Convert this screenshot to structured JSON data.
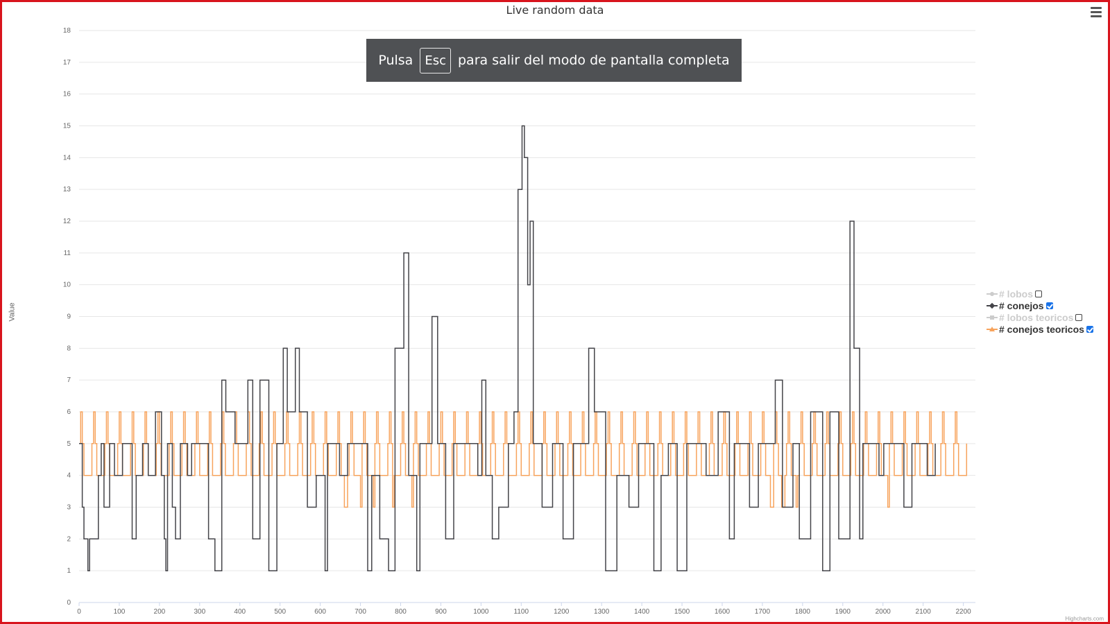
{
  "fullscreen_notice": {
    "prefix": "Pulsa",
    "key": "Esc",
    "suffix": "para salir del modo de pantalla completa"
  },
  "credits": "Highcharts.com",
  "chart_data": {
    "type": "line",
    "step": true,
    "title": "Live random data",
    "xlabel": "",
    "ylabel": "Value",
    "xlim": [
      0,
      2230
    ],
    "ylim": [
      0,
      18
    ],
    "x_ticks": [
      0,
      100,
      200,
      300,
      400,
      500,
      600,
      700,
      800,
      900,
      1000,
      1100,
      1200,
      1300,
      1400,
      1500,
      1600,
      1700,
      1800,
      1900,
      2000,
      2100,
      2200
    ],
    "y_ticks": [
      0,
      1,
      2,
      3,
      4,
      5,
      6,
      7,
      8,
      9,
      10,
      11,
      12,
      13,
      14,
      15,
      16,
      17,
      18
    ],
    "grid": true,
    "legend_position": "right",
    "series": [
      {
        "name": "# lobos",
        "color": "#cccccc",
        "visible": false,
        "symbol": "circle",
        "points": []
      },
      {
        "name": "# conejos",
        "color": "#434348",
        "visible": true,
        "symbol": "diamond",
        "points": [
          [
            0,
            5
          ],
          [
            8,
            3
          ],
          [
            12,
            2
          ],
          [
            22,
            1
          ],
          [
            26,
            2
          ],
          [
            48,
            4
          ],
          [
            55,
            5
          ],
          [
            62,
            3
          ],
          [
            76,
            5
          ],
          [
            88,
            4
          ],
          [
            108,
            5
          ],
          [
            132,
            2
          ],
          [
            142,
            4
          ],
          [
            158,
            5
          ],
          [
            172,
            4
          ],
          [
            190,
            6
          ],
          [
            205,
            4
          ],
          [
            212,
            2
          ],
          [
            216,
            1
          ],
          [
            220,
            5
          ],
          [
            232,
            3
          ],
          [
            240,
            2
          ],
          [
            252,
            5
          ],
          [
            270,
            4
          ],
          [
            280,
            5
          ],
          [
            322,
            2
          ],
          [
            338,
            1
          ],
          [
            355,
            7
          ],
          [
            365,
            6
          ],
          [
            388,
            5
          ],
          [
            420,
            7
          ],
          [
            432,
            2
          ],
          [
            450,
            7
          ],
          [
            472,
            1
          ],
          [
            492,
            5
          ],
          [
            508,
            8
          ],
          [
            518,
            6
          ],
          [
            538,
            8
          ],
          [
            548,
            6
          ],
          [
            568,
            3
          ],
          [
            590,
            4
          ],
          [
            612,
            1
          ],
          [
            618,
            5
          ],
          [
            648,
            4
          ],
          [
            668,
            5
          ],
          [
            718,
            1
          ],
          [
            728,
            4
          ],
          [
            748,
            2
          ],
          [
            770,
            1
          ],
          [
            786,
            8
          ],
          [
            808,
            11
          ],
          [
            820,
            4
          ],
          [
            840,
            1
          ],
          [
            848,
            5
          ],
          [
            878,
            9
          ],
          [
            892,
            5
          ],
          [
            912,
            2
          ],
          [
            932,
            5
          ],
          [
            992,
            4
          ],
          [
            1002,
            7
          ],
          [
            1012,
            4
          ],
          [
            1028,
            2
          ],
          [
            1044,
            3
          ],
          [
            1068,
            5
          ],
          [
            1082,
            6
          ],
          [
            1092,
            13
          ],
          [
            1102,
            15
          ],
          [
            1108,
            14
          ],
          [
            1116,
            10
          ],
          [
            1122,
            12
          ],
          [
            1130,
            5
          ],
          [
            1152,
            3
          ],
          [
            1178,
            5
          ],
          [
            1204,
            2
          ],
          [
            1230,
            5
          ],
          [
            1268,
            8
          ],
          [
            1282,
            6
          ],
          [
            1310,
            1
          ],
          [
            1338,
            4
          ],
          [
            1368,
            3
          ],
          [
            1392,
            5
          ],
          [
            1430,
            1
          ],
          [
            1448,
            4
          ],
          [
            1466,
            5
          ],
          [
            1488,
            1
          ],
          [
            1512,
            5
          ],
          [
            1560,
            4
          ],
          [
            1590,
            6
          ],
          [
            1618,
            2
          ],
          [
            1630,
            5
          ],
          [
            1668,
            3
          ],
          [
            1690,
            5
          ],
          [
            1732,
            7
          ],
          [
            1750,
            3
          ],
          [
            1776,
            5
          ],
          [
            1792,
            2
          ],
          [
            1820,
            6
          ],
          [
            1850,
            1
          ],
          [
            1868,
            6
          ],
          [
            1890,
            2
          ],
          [
            1918,
            12
          ],
          [
            1928,
            8
          ],
          [
            1942,
            2
          ],
          [
            1950,
            5
          ],
          [
            1990,
            4
          ],
          [
            2002,
            5
          ],
          [
            2052,
            3
          ],
          [
            2072,
            5
          ],
          [
            2110,
            4
          ],
          [
            2130,
            5
          ]
        ]
      },
      {
        "name": "# lobos teoricos",
        "color": "#cccccc",
        "visible": false,
        "symbol": "square",
        "points": []
      },
      {
        "name": "# conejos teoricos",
        "color": "#f7a35c",
        "visible": true,
        "symbol": "triangle",
        "period_pattern": [
          5,
          6,
          5,
          4,
          4,
          4,
          4,
          4
        ],
        "dips": [
          [
            662,
            3
          ],
          [
            700,
            3
          ],
          [
            732,
            3
          ],
          [
            778,
            3
          ],
          [
            830,
            3
          ],
          [
            1222,
            3
          ],
          [
            1722,
            3
          ],
          [
            1750,
            3
          ],
          [
            1784,
            3
          ],
          [
            2012,
            3
          ]
        ],
        "x_start": 0,
        "x_end": 2210
      }
    ]
  }
}
